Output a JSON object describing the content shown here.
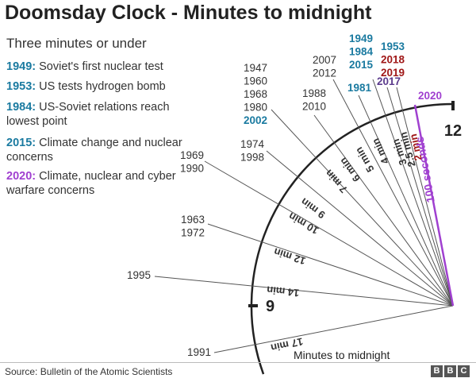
{
  "title": "Doomsday Clock - Minutes to midnight",
  "subtitle": "Three minutes or under",
  "legend": [
    {
      "year": "1949:",
      "text": "Soviet's first nuclear test",
      "color": "#1a7aa0"
    },
    {
      "year": "1953:",
      "text": "US tests hydrogen bomb",
      "color": "#1a7aa0"
    },
    {
      "year": "1984:",
      "text": "US-Soviet relations reach lowest point",
      "color": "#1a7aa0"
    },
    {
      "year": "2015:",
      "text": "Climate change and nuclear concerns",
      "color": "#1a7aa0"
    },
    {
      "year": "2020:",
      "text": "Climate, nuclear and cyber warfare concerns",
      "color": "#a040d0"
    }
  ],
  "source": "Source: Bulletin of the Atomic Scientists",
  "brand": [
    "B",
    "B",
    "C"
  ],
  "chart_data": {
    "type": "radial-clock",
    "xlabel": "Minutes to midnight",
    "clock_labels": {
      "twelve": "12",
      "nine": "9"
    },
    "series": [
      {
        "minutes": 17,
        "label": "17 min",
        "years": [
          {
            "y": "1991",
            "c": "#333333"
          }
        ]
      },
      {
        "minutes": 14,
        "label": "14 min",
        "years": [
          {
            "y": "1995",
            "c": "#333333"
          }
        ]
      },
      {
        "minutes": 12,
        "label": "12 min",
        "years": [
          {
            "y": "1963",
            "c": "#333333"
          },
          {
            "y": "1972",
            "c": "#333333"
          }
        ]
      },
      {
        "minutes": 10,
        "label": "10 min",
        "years": [
          {
            "y": "1969",
            "c": "#333333"
          },
          {
            "y": "1990",
            "c": "#333333"
          }
        ]
      },
      {
        "minutes": 9,
        "label": "9 min",
        "years": [
          {
            "y": "1974",
            "c": "#333333"
          },
          {
            "y": "1998",
            "c": "#333333"
          }
        ]
      },
      {
        "minutes": 7,
        "label": "7 min",
        "years": [
          {
            "y": "1947",
            "c": "#333333"
          },
          {
            "y": "1960",
            "c": "#333333"
          },
          {
            "y": "1968",
            "c": "#333333"
          },
          {
            "y": "1980",
            "c": "#333333"
          },
          {
            "y": "2002",
            "c": "#1a7aa0"
          }
        ]
      },
      {
        "minutes": 6,
        "label": "6 min",
        "years": [
          {
            "y": "1988",
            "c": "#333333"
          },
          {
            "y": "2010",
            "c": "#333333"
          }
        ]
      },
      {
        "minutes": 5,
        "label": "5 min",
        "years": [
          {
            "y": "2007",
            "c": "#333333"
          },
          {
            "y": "2012",
            "c": "#333333"
          }
        ]
      },
      {
        "minutes": 4,
        "label": "4 min",
        "years": [
          {
            "y": "1981",
            "c": "#1a7aa0"
          }
        ]
      },
      {
        "minutes": 3,
        "label": "3 min",
        "years": [
          {
            "y": "1949",
            "c": "#1a7aa0"
          },
          {
            "y": "1984",
            "c": "#1a7aa0"
          },
          {
            "y": "2015",
            "c": "#1a7aa0"
          }
        ]
      },
      {
        "minutes": 2.5,
        "label": "2.5 min",
        "years": [
          {
            "y": "2017",
            "c": "#5b3a8c"
          }
        ]
      },
      {
        "minutes": 2,
        "label": "2 min",
        "years": [
          {
            "y": "1953",
            "c": "#1a7aa0"
          },
          {
            "y": "2018",
            "c": "#a01818"
          },
          {
            "y": "2019",
            "c": "#a01818"
          }
        ]
      },
      {
        "minutes": 1.667,
        "label": "100 seconds",
        "years": [
          {
            "y": "2020",
            "c": "#a040d0"
          }
        ]
      }
    ]
  }
}
